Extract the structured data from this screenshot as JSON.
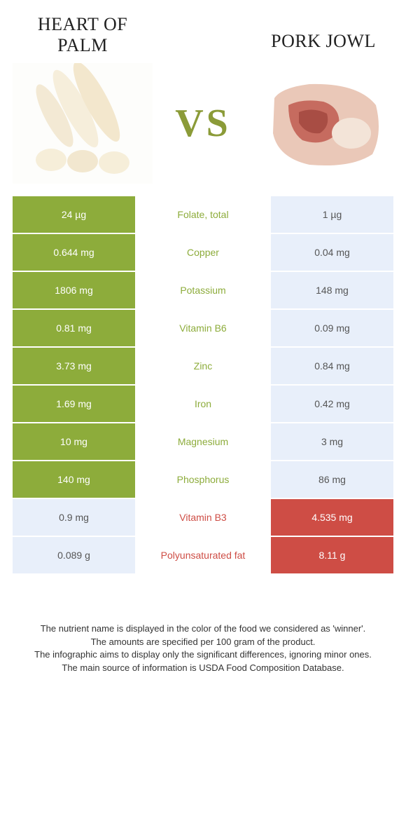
{
  "header": {
    "left_title": "Heart of Palm",
    "right_title": "Pork Jowl",
    "vs_text": "VS"
  },
  "colors": {
    "left_food": "#8dac3b",
    "right_food": "#ce4d45",
    "left_loser_bg": "#e8effa",
    "right_loser_bg": "#e8effa",
    "left_loser_text": "#555555",
    "right_loser_text": "#555555",
    "vs_color": "#8b9b38"
  },
  "rows": [
    {
      "nutrient": "Folate, total",
      "left": "24 µg",
      "right": "1 µg",
      "winner": "left"
    },
    {
      "nutrient": "Copper",
      "left": "0.644 mg",
      "right": "0.04 mg",
      "winner": "left"
    },
    {
      "nutrient": "Potassium",
      "left": "1806 mg",
      "right": "148 mg",
      "winner": "left"
    },
    {
      "nutrient": "Vitamin B6",
      "left": "0.81 mg",
      "right": "0.09 mg",
      "winner": "left"
    },
    {
      "nutrient": "Zinc",
      "left": "3.73 mg",
      "right": "0.84 mg",
      "winner": "left"
    },
    {
      "nutrient": "Iron",
      "left": "1.69 mg",
      "right": "0.42 mg",
      "winner": "left"
    },
    {
      "nutrient": "Magnesium",
      "left": "10 mg",
      "right": "3 mg",
      "winner": "left"
    },
    {
      "nutrient": "Phosphorus",
      "left": "140 mg",
      "right": "86 mg",
      "winner": "left"
    },
    {
      "nutrient": "Vitamin B3",
      "left": "0.9 mg",
      "right": "4.535 mg",
      "winner": "right"
    },
    {
      "nutrient": "Polyunsaturated fat",
      "left": "0.089 g",
      "right": "8.11 g",
      "winner": "right"
    }
  ],
  "footer": {
    "line1": "The nutrient name is displayed in the color of the food we considered as 'winner'.",
    "line2": "The amounts are specified per 100 gram of the product.",
    "line3": "The infographic aims to display only the significant differences, ignoring minor ones.",
    "line4": "The main source of information is USDA Food Composition Database."
  }
}
